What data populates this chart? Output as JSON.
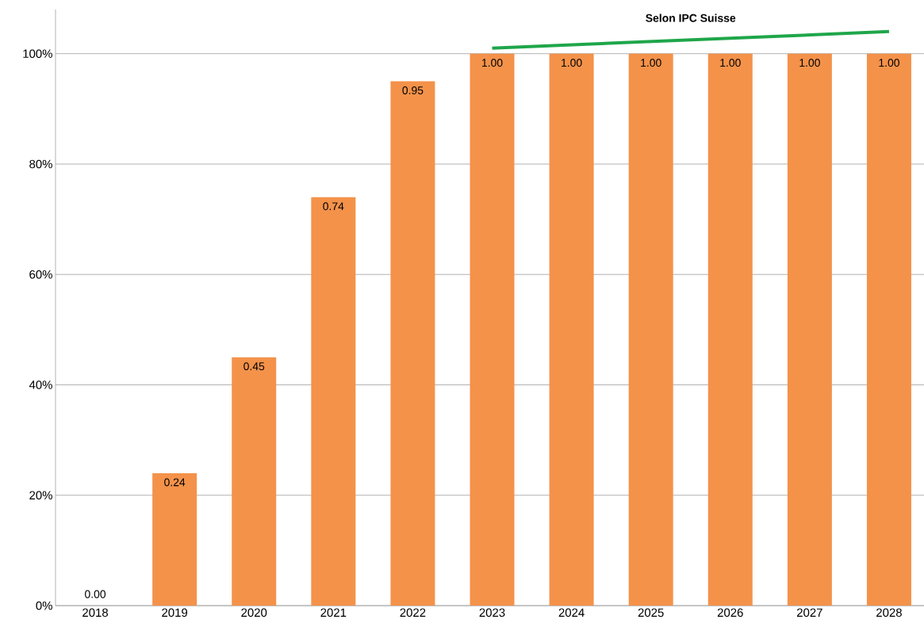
{
  "chart_data": {
    "type": "bar",
    "categories": [
      "2018",
      "2019",
      "2020",
      "2021",
      "2022",
      "2023",
      "2024",
      "2025",
      "2026",
      "2027",
      "2028"
    ],
    "series": [
      {
        "color": "#f4924a",
        "values": [
          0.0,
          0.24,
          0.45,
          0.74,
          0.95,
          1.0,
          1.0,
          1.0,
          1.0,
          1.0,
          1.0
        ],
        "value_labels": [
          "0.00",
          "0.24",
          "0.45",
          "0.74",
          "0.95",
          "1.00",
          "1.00",
          "1.00",
          "1.00",
          "1.00",
          "1.00"
        ]
      },
      {
        "type": "line",
        "color": "#1fa64a",
        "values": [
          null,
          null,
          null,
          null,
          null,
          1.01,
          null,
          null,
          null,
          null,
          1.04
        ]
      }
    ],
    "ylim": [
      0,
      1.08
    ],
    "yticks": [
      {
        "value": 0,
        "label": "0%"
      },
      {
        "value": 0.2,
        "label": "20%"
      },
      {
        "value": 0.4,
        "label": "40%"
      },
      {
        "value": 0.6,
        "label": "60%"
      },
      {
        "value": 0.8,
        "label": "80%"
      },
      {
        "value": 1.0,
        "label": "100%"
      }
    ],
    "grid": "y",
    "annotations": [
      "Selon IPC Suisse"
    ]
  }
}
